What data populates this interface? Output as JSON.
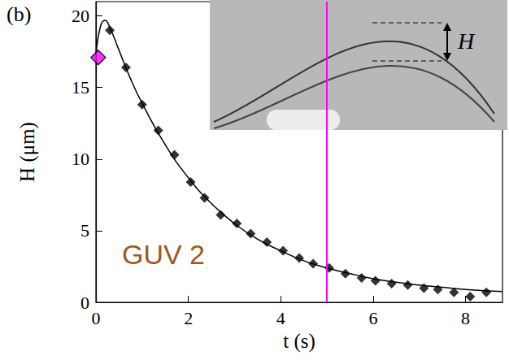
{
  "chart_data": {
    "type": "scatter",
    "panel_label": "(b)",
    "x_label": "t (s)",
    "y_label": "H (μm)",
    "xlim": [
      0,
      8.8
    ],
    "xticks": [
      0,
      2,
      4,
      6,
      8
    ],
    "ylim": [
      0,
      21
    ],
    "yticks": [
      0,
      5,
      10,
      15,
      20
    ],
    "grid": false,
    "annotations": [
      {
        "text": "GUV 2",
        "color": "#9c5a1a"
      }
    ],
    "inset_label": "H",
    "vline": {
      "x": 5,
      "color": "#ff00ff"
    },
    "series": [
      {
        "type": "line",
        "color": "#000000",
        "line_style": "solid",
        "x": [
          0,
          0.1,
          0.2,
          0.3,
          0.5,
          0.75,
          1,
          1.5,
          2,
          2.5,
          3,
          3.5,
          4,
          4.5,
          5,
          5.5,
          6,
          6.5,
          7,
          7.5,
          8,
          8.8
        ],
        "values": [
          17.2,
          19.3,
          19.7,
          19.2,
          17.6,
          15.6,
          13.9,
          11.0,
          8.7,
          6.9,
          5.5,
          4.4,
          3.6,
          2.9,
          2.4,
          2.0,
          1.65,
          1.4,
          1.2,
          1.05,
          0.9,
          0.75
        ]
      },
      {
        "type": "scatter",
        "color": "#000000",
        "marker": "diamond",
        "x": [
          0.3,
          0.65,
          1.0,
          1.35,
          1.7,
          2.05,
          2.35,
          2.7,
          3.05,
          3.35,
          3.7,
          4.05,
          4.4,
          4.7,
          5.05,
          5.4,
          5.75,
          6.05,
          6.4,
          6.75,
          7.1,
          7.4,
          7.75,
          8.1,
          8.45
        ],
        "values": [
          19.0,
          16.4,
          13.8,
          12.0,
          10.3,
          8.4,
          7.3,
          6.1,
          5.5,
          4.8,
          4.2,
          3.6,
          3.1,
          2.7,
          2.4,
          2.0,
          1.7,
          1.5,
          1.3,
          1.2,
          1.0,
          0.9,
          0.7,
          0.4,
          0.7
        ]
      },
      {
        "type": "scatter",
        "color": "#ff00ff",
        "marker": "diamond",
        "x": [
          0.05
        ],
        "values": [
          17.1
        ]
      }
    ]
  }
}
